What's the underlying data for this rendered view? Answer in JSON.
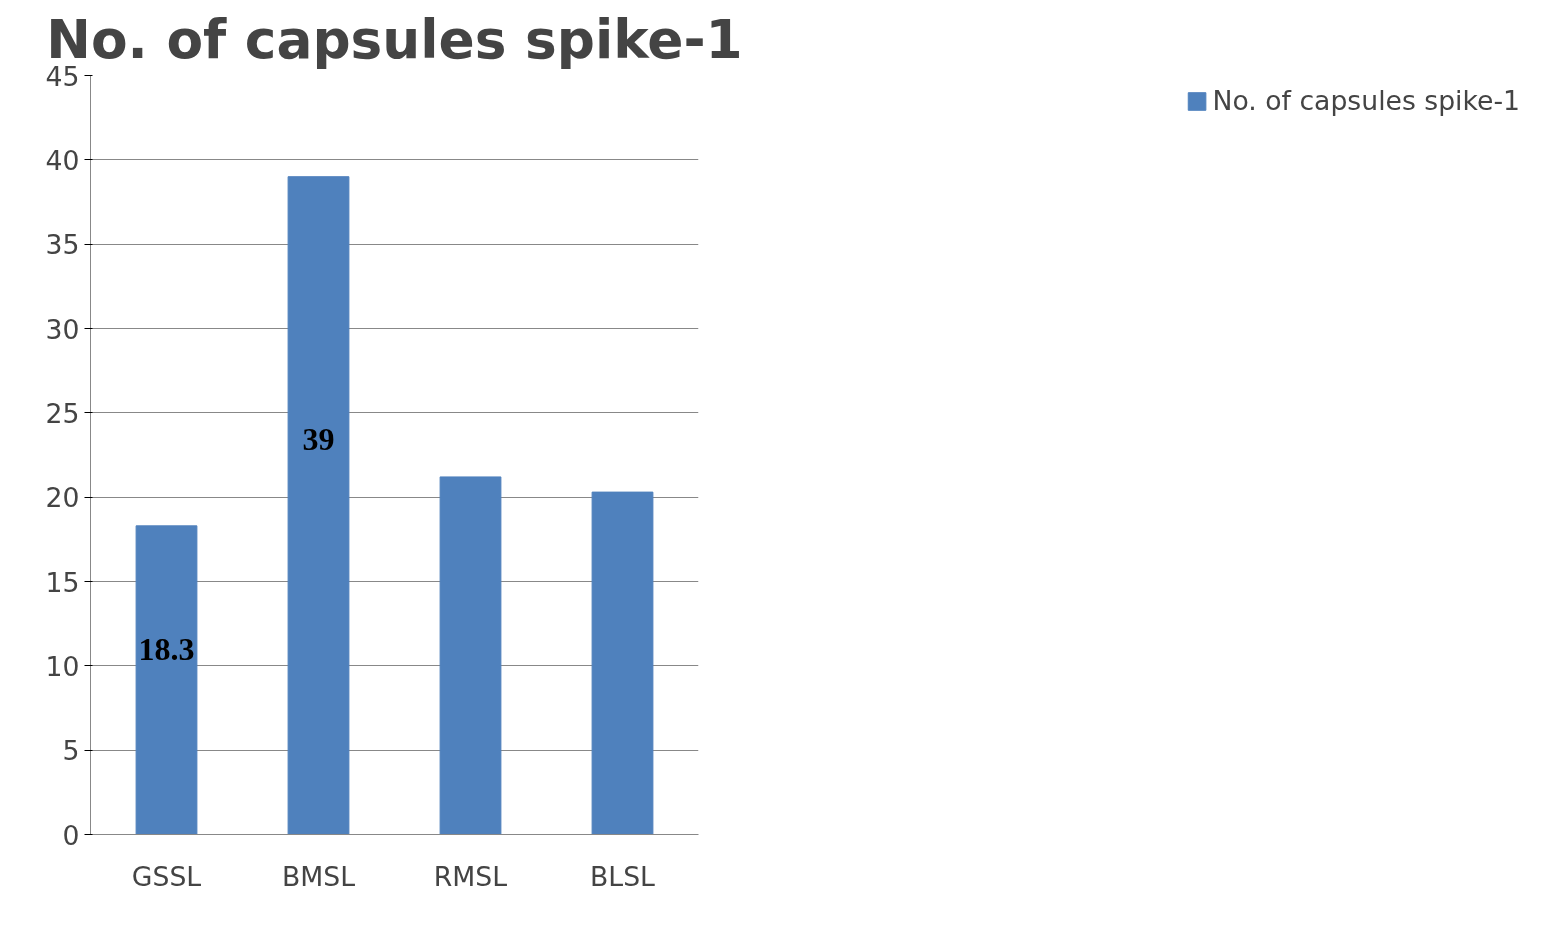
{
  "chart_data": {
    "type": "bar",
    "title": "No. of capsules spike-1",
    "categories": [
      "GSSL",
      "BMSL",
      "RMSL",
      "BLSL"
    ],
    "series": [
      {
        "name": "No. of capsules spike-1",
        "color": "#4f81bd",
        "values": [
          18.3,
          39,
          21.2,
          20.3
        ]
      }
    ],
    "value_labels": [
      "18.3",
      "39",
      null,
      null
    ],
    "ylim": [
      0,
      45
    ],
    "yticks": [
      0,
      5,
      10,
      15,
      20,
      25,
      30,
      35,
      40,
      45
    ],
    "grid": "y",
    "legend": "right"
  }
}
